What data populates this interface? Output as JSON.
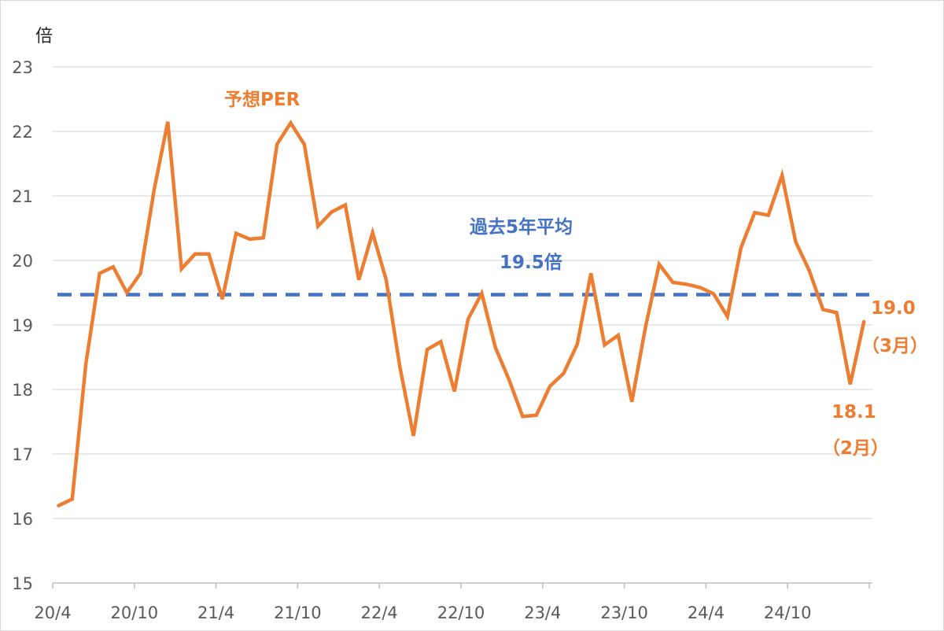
{
  "chart_data": {
    "type": "line",
    "ylabel": "倍",
    "ylim": [
      15,
      23
    ],
    "yticks": [
      15,
      16,
      17,
      18,
      19,
      20,
      21,
      22,
      23
    ],
    "grid": true,
    "xtick_labels": [
      "20/4",
      "20/10",
      "21/4",
      "21/10",
      "22/4",
      "22/10",
      "23/4",
      "23/10",
      "24/4",
      "24/10"
    ],
    "colors": {
      "per": "#ED7D31",
      "avg": "#4472C4",
      "grid": "#d9d9d9"
    },
    "series": [
      {
        "name": "予想PER",
        "values": [
          16.2,
          16.3,
          18.4,
          19.8,
          19.9,
          19.5,
          19.8,
          21.1,
          22.15,
          19.87,
          20.1,
          20.1,
          19.4,
          20.42,
          20.33,
          20.35,
          21.8,
          22.13,
          21.8,
          20.53,
          20.75,
          20.86,
          19.7,
          20.43,
          19.7,
          18.35,
          17.28,
          18.62,
          18.74,
          17.97,
          19.09,
          19.49,
          18.65,
          18.15,
          17.58,
          17.6,
          18.05,
          18.25,
          18.7,
          19.8,
          18.69,
          18.84,
          17.81,
          18.97,
          19.94,
          19.66,
          19.63,
          19.58,
          19.48,
          19.13,
          20.2,
          20.74,
          20.7,
          21.32,
          20.29,
          19.84,
          19.24,
          19.19,
          18.08,
          19.05
        ]
      },
      {
        "name": "過去5年平均",
        "values": [
          19.47
        ]
      }
    ],
    "annotations": {
      "per_label": "予想PER",
      "avg_label_line1": "過去5年平均",
      "avg_label_line2": "19.5倍",
      "last_value": "19.0",
      "last_month": "（3月）",
      "prev_value": "18.1",
      "prev_month": "（2月）"
    }
  }
}
